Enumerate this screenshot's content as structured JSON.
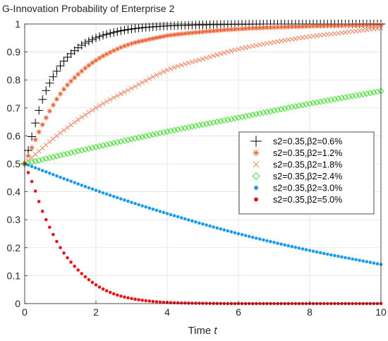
{
  "chart_data": {
    "type": "scatter",
    "title": "G-Innovation Probability of Enterprise 2",
    "xlabel": "Time",
    "xlabel_var": "t",
    "ylabel": "",
    "xlim": [
      0,
      10
    ],
    "ylim": [
      0,
      1
    ],
    "xticks": [
      "0",
      "2",
      "4",
      "6",
      "8",
      "10"
    ],
    "yticks": [
      "0",
      "0.1",
      "0.2",
      "0.3",
      "0.4",
      "0.5",
      "0.6",
      "0.7",
      "0.8",
      "0.9",
      "1"
    ],
    "grid": true,
    "legend_position": "right",
    "series": [
      {
        "name": "s2=0.35,β2=0.6%",
        "marker": "plus",
        "color": "#000000",
        "x": [
          0,
          0.5,
          1,
          1.5,
          2,
          2.5,
          3,
          3.5,
          4,
          5,
          6,
          7,
          8,
          9,
          10
        ],
        "y": [
          0.5,
          0.73,
          0.85,
          0.915,
          0.95,
          0.97,
          0.982,
          0.989,
          0.993,
          0.997,
          0.999,
          1.0,
          1.0,
          1.0,
          1.0
        ]
      },
      {
        "name": "s2=0.35,β2=1.2%",
        "marker": "asterisk",
        "color": "#ea5f2e",
        "x": [
          0,
          0.5,
          1,
          1.5,
          2,
          2.5,
          3,
          3.5,
          4,
          5,
          6,
          7,
          8,
          9,
          10
        ],
        "y": [
          0.5,
          0.64,
          0.75,
          0.82,
          0.87,
          0.905,
          0.93,
          0.945,
          0.958,
          0.972,
          0.982,
          0.988,
          0.992,
          0.995,
          0.997
        ]
      },
      {
        "name": "s2=0.35,β2=1.8%",
        "marker": "cross",
        "color": "#ea7a56",
        "x": [
          0,
          1,
          2,
          3,
          4,
          5,
          6,
          7,
          8,
          9,
          10
        ],
        "y": [
          0.5,
          0.61,
          0.7,
          0.77,
          0.835,
          0.875,
          0.91,
          0.935,
          0.955,
          0.97,
          0.985
        ]
      },
      {
        "name": "s2=0.35,β2=2.4%",
        "marker": "diamond",
        "color": "#44dd33",
        "x": [
          0,
          2,
          4,
          6,
          8,
          10
        ],
        "y": [
          0.5,
          0.56,
          0.615,
          0.665,
          0.715,
          0.76
        ]
      },
      {
        "name": "s2=0.35,β2=3.0%",
        "marker": "dot",
        "color": "#1b9be8",
        "x": [
          0,
          2,
          4,
          6,
          8,
          10
        ],
        "y": [
          0.5,
          0.405,
          0.322,
          0.25,
          0.19,
          0.14
        ]
      },
      {
        "name": "s2=0.35,β2=5.0%",
        "marker": "dot",
        "color": "#e8141b",
        "x": [
          0,
          0.25,
          0.5,
          0.75,
          1,
          1.5,
          2,
          2.5,
          3,
          3.5,
          4,
          4.5,
          5,
          6,
          7,
          8,
          9,
          10
        ],
        "y": [
          0.5,
          0.42,
          0.33,
          0.26,
          0.2,
          0.12,
          0.067,
          0.035,
          0.018,
          0.009,
          0.004,
          0.002,
          0.001,
          0.0,
          0.0,
          0.0,
          0.0,
          0.0
        ]
      }
    ]
  }
}
